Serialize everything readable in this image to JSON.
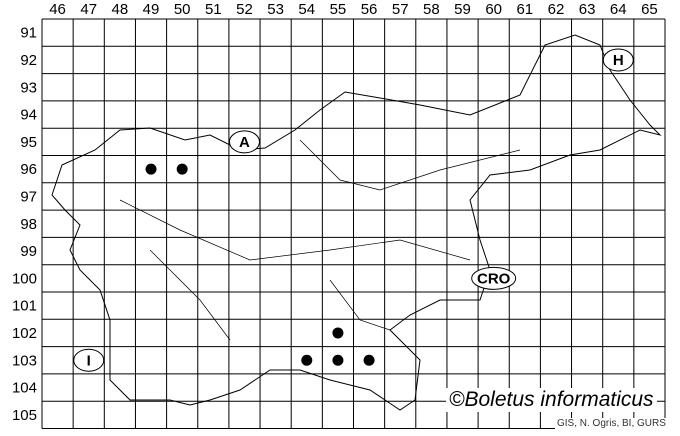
{
  "grid": {
    "columns": [
      "46",
      "47",
      "48",
      "49",
      "50",
      "51",
      "52",
      "53",
      "54",
      "55",
      "56",
      "57",
      "58",
      "59",
      "60",
      "61",
      "62",
      "63",
      "64",
      "65"
    ],
    "rows": [
      "91",
      "92",
      "93",
      "94",
      "95",
      "96",
      "97",
      "98",
      "99",
      "100",
      "101",
      "102",
      "103",
      "104",
      "105"
    ]
  },
  "country_labels": [
    {
      "text": "A",
      "col": "52",
      "row": "95"
    },
    {
      "text": "H",
      "col": "64",
      "row": "92"
    },
    {
      "text": "CRO",
      "col": "60",
      "row": "100"
    },
    {
      "text": "I",
      "col": "47",
      "row": "103"
    }
  ],
  "records": [
    {
      "col": "49",
      "row": "96"
    },
    {
      "col": "50",
      "row": "96"
    },
    {
      "col": "55",
      "row": "102"
    },
    {
      "col": "55",
      "row": "103"
    },
    {
      "col": "56",
      "row": "103"
    },
    {
      "col": "54",
      "row": "103"
    }
  ],
  "caption": "©Boletus informaticus",
  "credit": "GIS, N. Ogris, BI, GURS",
  "colors": {
    "grid": "#000000",
    "dot": "#000000",
    "border": "#000000"
  }
}
